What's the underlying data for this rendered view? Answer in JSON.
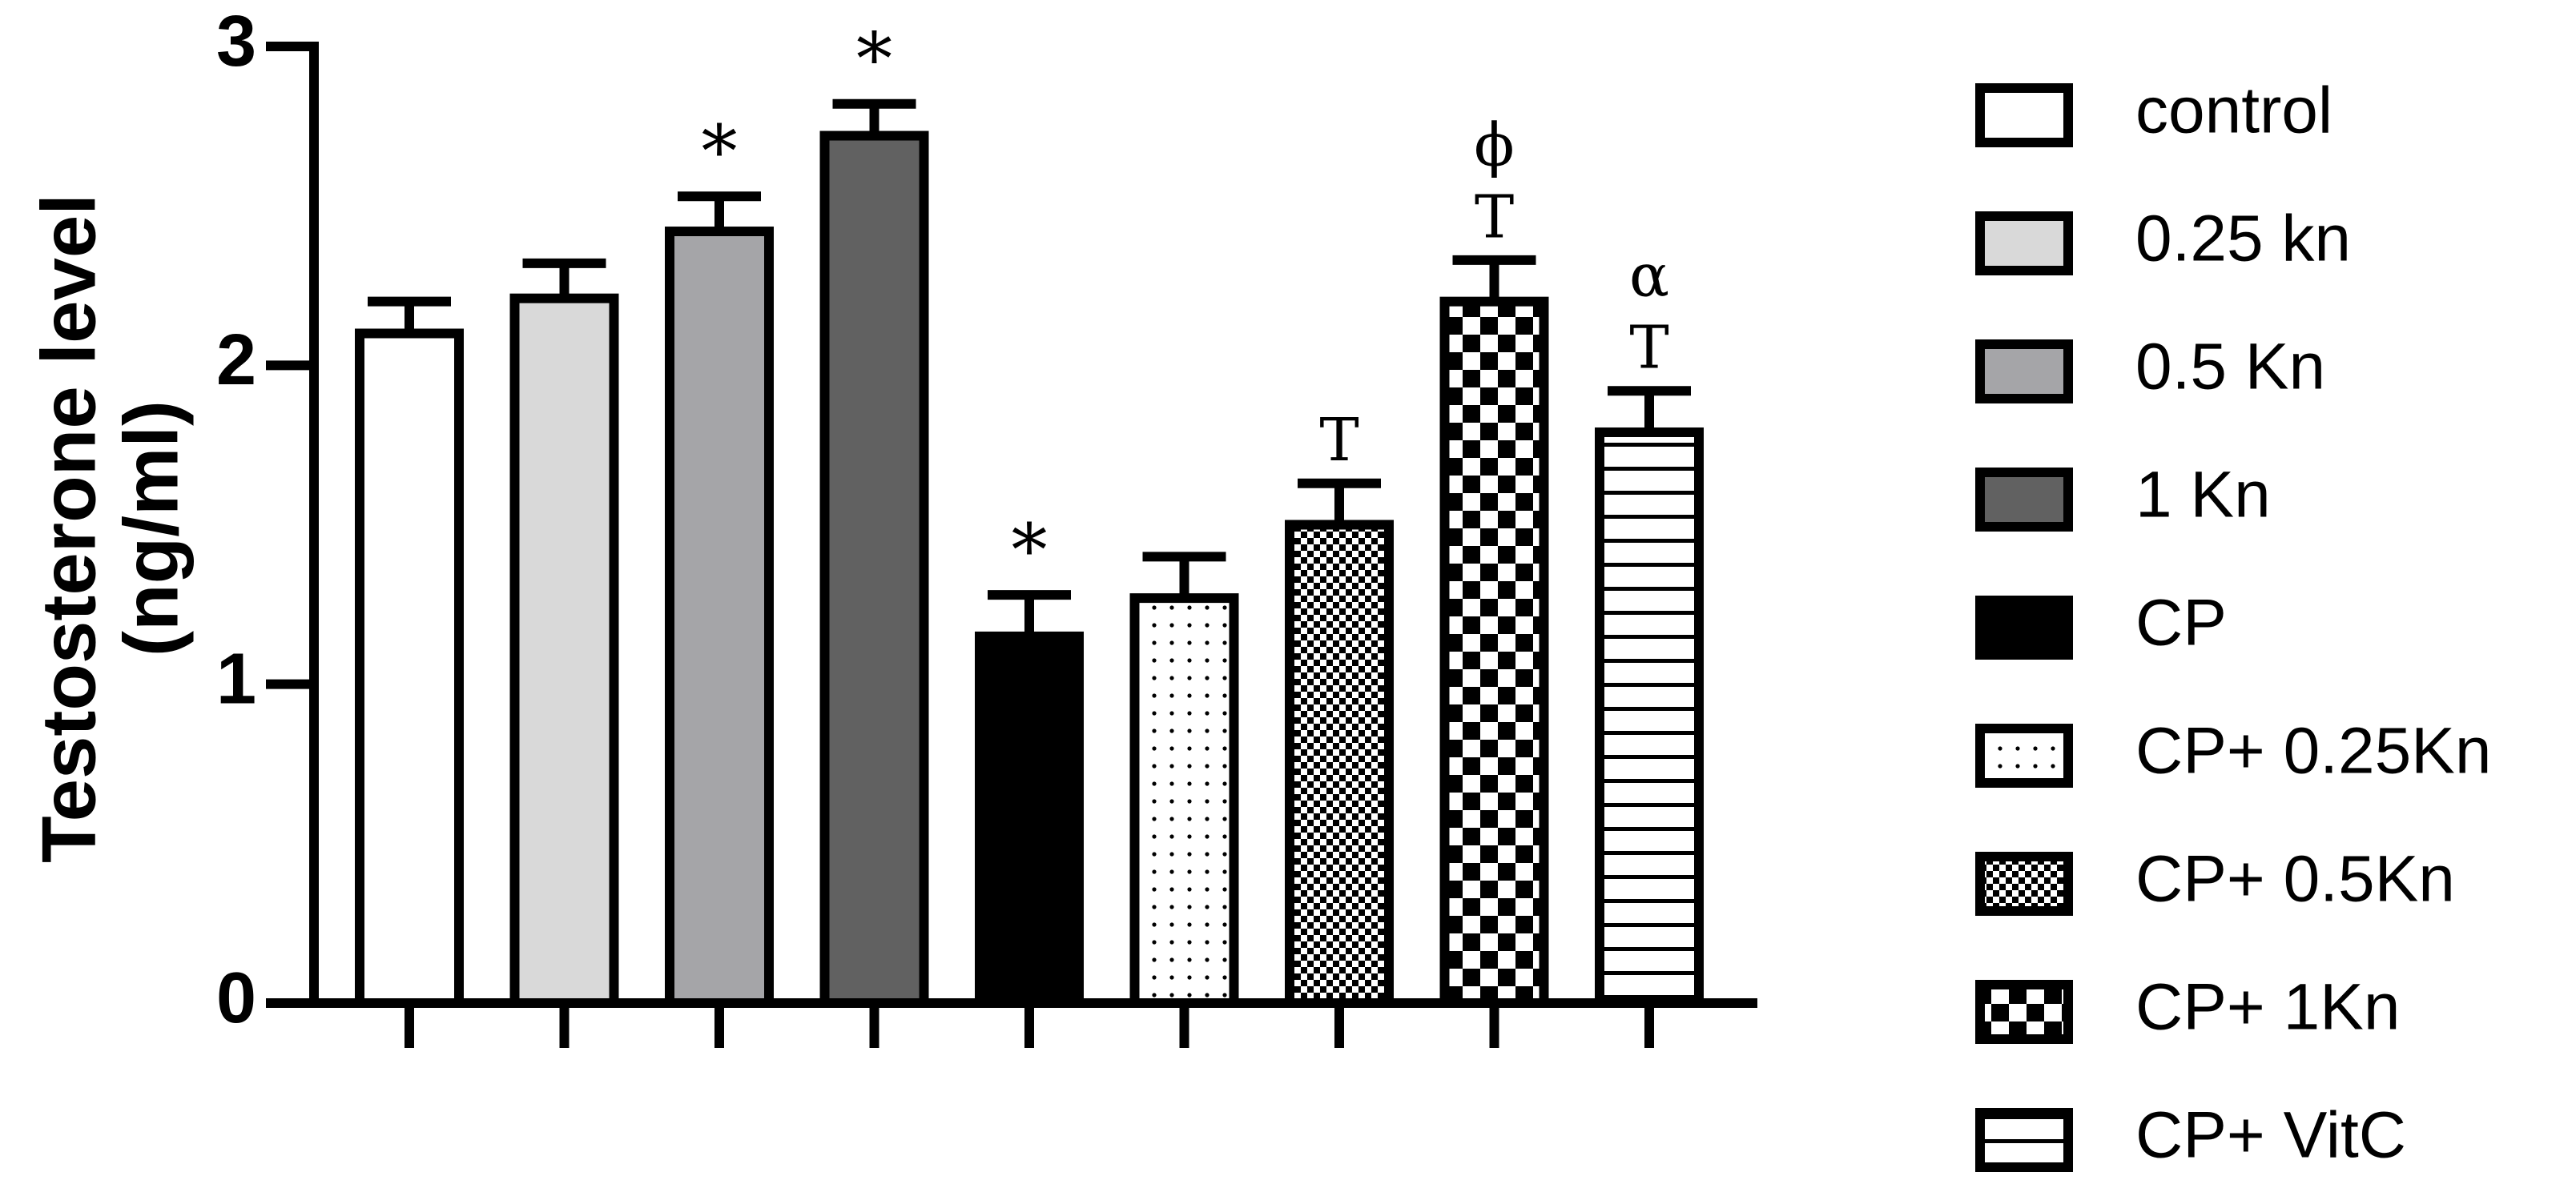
{
  "chart_data": {
    "type": "bar",
    "y_label_lines": [
      "Testosterone level",
      "(ng/ml)"
    ],
    "ylim": [
      0,
      3
    ],
    "yticks": [
      0,
      1,
      2,
      3
    ],
    "series": [
      {
        "name": "control",
        "color": "#ffffff",
        "pattern": "solid",
        "values": [
          2.1
        ],
        "errors": [
          0.1
        ]
      },
      {
        "name": "0.25 kn",
        "color": "#d9d9d9",
        "pattern": "solid",
        "values": [
          2.21
        ],
        "errors": [
          0.11
        ]
      },
      {
        "name": "0.5 Kn",
        "color": "#a5a5a8",
        "pattern": "solid",
        "values": [
          2.42
        ],
        "errors": [
          0.11
        ]
      },
      {
        "name": "1 Kn",
        "color": "#616161",
        "pattern": "solid",
        "values": [
          2.72
        ],
        "errors": [
          0.1
        ]
      },
      {
        "name": "CP",
        "color": "#000000",
        "pattern": "solid",
        "values": [
          1.15
        ],
        "errors": [
          0.13
        ]
      },
      {
        "name": "CP+ 0.25Kn",
        "color": "#000000",
        "pattern": "dots",
        "values": [
          1.27
        ],
        "errors": [
          0.13
        ]
      },
      {
        "name": "CP+ 0.5Kn",
        "color": "#000000",
        "pattern": "fine-checker",
        "values": [
          1.5
        ],
        "errors": [
          0.13
        ]
      },
      {
        "name": "CP+ 1Kn",
        "color": "#000000",
        "pattern": "checker",
        "values": [
          2.2
        ],
        "errors": [
          0.13
        ]
      },
      {
        "name": "CP+ VitC",
        "color": "#000000",
        "pattern": "hlines",
        "values": [
          1.79
        ],
        "errors": [
          0.13
        ]
      }
    ],
    "annotations": [
      {
        "series": "0.5 Kn",
        "text": "*"
      },
      {
        "series": "1 Kn",
        "text": "*"
      },
      {
        "series": "CP",
        "text": "*"
      },
      {
        "series": "CP+ 0.5Kn",
        "text": "T"
      },
      {
        "series": "CP+ 1Kn",
        "text": "T"
      },
      {
        "series": "CP+ 1Kn",
        "text": "ϕ"
      },
      {
        "series": "CP+ VitC",
        "text": "T"
      },
      {
        "series": "CP+ VitC",
        "text": "α"
      }
    ]
  }
}
